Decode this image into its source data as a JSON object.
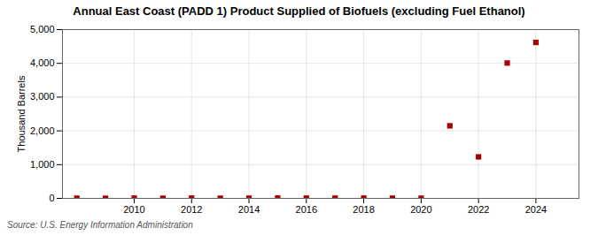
{
  "chart_data": {
    "type": "scatter",
    "title": "Annual East Coast (PADD 1) Product Supplied of Biofuels (excluding Fuel Ethanol)",
    "ylabel": "Thousand Barrels",
    "source": "Source: U.S. Energy Information Administration",
    "x": [
      2008,
      2009,
      2010,
      2011,
      2012,
      2013,
      2014,
      2015,
      2016,
      2017,
      2018,
      2019,
      2020,
      2021,
      2022,
      2023,
      2024
    ],
    "values": [
      5,
      3,
      8,
      5,
      8,
      5,
      6,
      10,
      8,
      7,
      8,
      5,
      5,
      2150,
      1230,
      4010,
      4620
    ],
    "color": "#aa0000",
    "marker": "square",
    "xlim": [
      2007.5,
      2025.5
    ],
    "xticks": [
      2010,
      2012,
      2014,
      2016,
      2018,
      2020,
      2022,
      2024
    ],
    "ylim": [
      0,
      5000
    ],
    "yticks": [
      0,
      {
        "value": 1000,
        "label": "1,000"
      },
      {
        "value": 2000,
        "label": "2,000"
      },
      {
        "value": 3000,
        "label": "3,000"
      },
      {
        "value": 4000,
        "label": "4,000"
      },
      {
        "value": 5000,
        "label": "5,000"
      }
    ],
    "grid": true
  }
}
